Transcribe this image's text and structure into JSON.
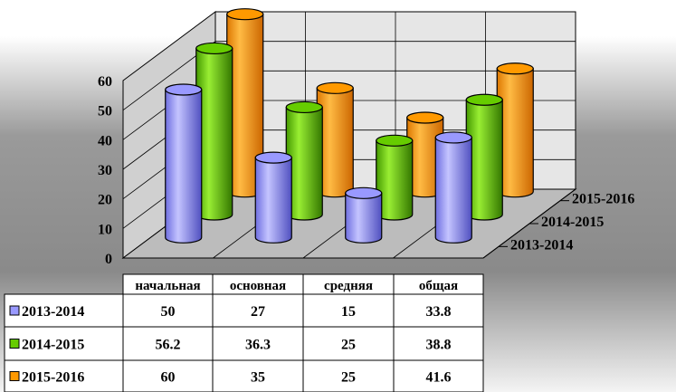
{
  "chart_data": {
    "type": "bar",
    "categories": [
      "начальная",
      "основная",
      "средняя",
      "общая"
    ],
    "series": [
      {
        "name": "2013-2014",
        "color": "#9999ff",
        "values": [
          50,
          27,
          15,
          33.8
        ]
      },
      {
        "name": "2014-2015",
        "color": "#66cc00",
        "values": [
          56.2,
          36.3,
          25,
          38.8
        ]
      },
      {
        "name": "2015-2016",
        "color": "#ff9900",
        "values": [
          60,
          35,
          25,
          41.6
        ]
      }
    ],
    "ylim": [
      0,
      60
    ],
    "yticks": [
      "0",
      "10",
      "20",
      "30",
      "40",
      "50",
      "60"
    ],
    "grid": true,
    "data_table": true
  }
}
